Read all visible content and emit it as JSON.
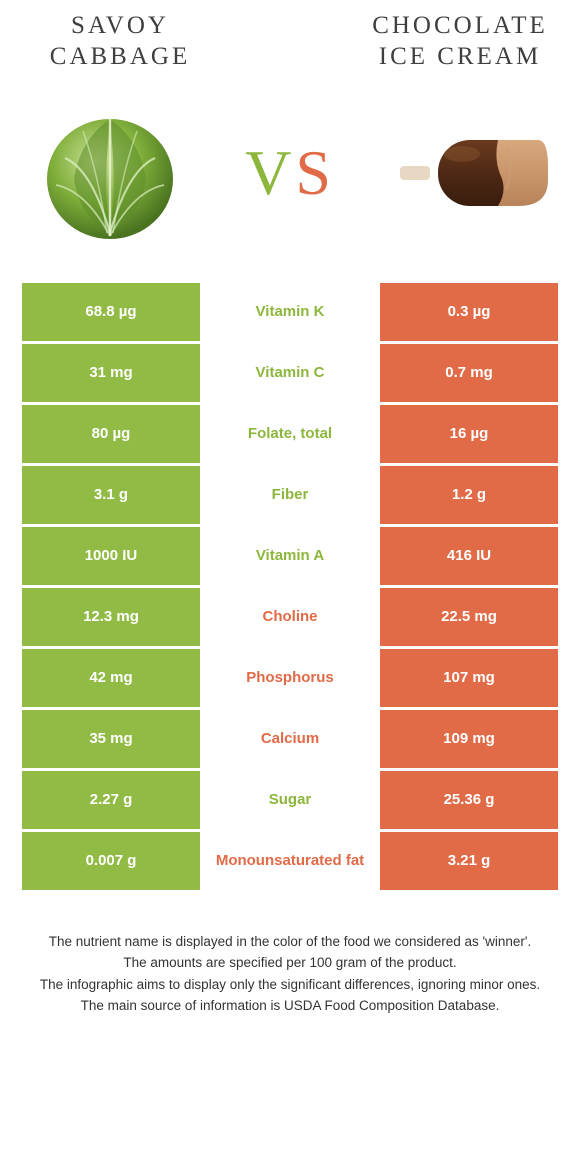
{
  "titles": {
    "left": "SAVOY CABBAGE",
    "right": "CHOCOLATE ICE CREAM"
  },
  "vs": {
    "v": "V",
    "s": "S"
  },
  "colors": {
    "left_bg": "#92bb46",
    "right_bg": "#e16a47",
    "left_text": "#8cb63c",
    "right_text": "#e16a47",
    "cell_text": "#ffffff",
    "background": "#ffffff"
  },
  "table": {
    "rows": [
      {
        "left": "68.8 µg",
        "label": "Vitamin K",
        "right": "0.3 µg",
        "winner": "left"
      },
      {
        "left": "31 mg",
        "label": "Vitamin C",
        "right": "0.7 mg",
        "winner": "left"
      },
      {
        "left": "80 µg",
        "label": "Folate, total",
        "right": "16 µg",
        "winner": "left"
      },
      {
        "left": "3.1 g",
        "label": "Fiber",
        "right": "1.2 g",
        "winner": "left"
      },
      {
        "left": "1000 IU",
        "label": "Vitamin A",
        "right": "416 IU",
        "winner": "left"
      },
      {
        "left": "12.3 mg",
        "label": "Choline",
        "right": "22.5 mg",
        "winner": "right"
      },
      {
        "left": "42 mg",
        "label": "Phosphorus",
        "right": "107 mg",
        "winner": "right"
      },
      {
        "left": "35 mg",
        "label": "Calcium",
        "right": "109 mg",
        "winner": "right"
      },
      {
        "left": "2.27 g",
        "label": "Sugar",
        "right": "25.36 g",
        "winner": "left"
      },
      {
        "left": "0.007 g",
        "label": "Monounsaturated fat",
        "right": "3.21 g",
        "winner": "right"
      }
    ]
  },
  "footnotes": [
    "The nutrient name is displayed in the color of the food we considered as 'winner'.",
    "The amounts are specified per 100 gram of the product.",
    "The infographic aims to display only the significant differences, ignoring minor ones.",
    "The main source of information is USDA Food Composition Database."
  ]
}
